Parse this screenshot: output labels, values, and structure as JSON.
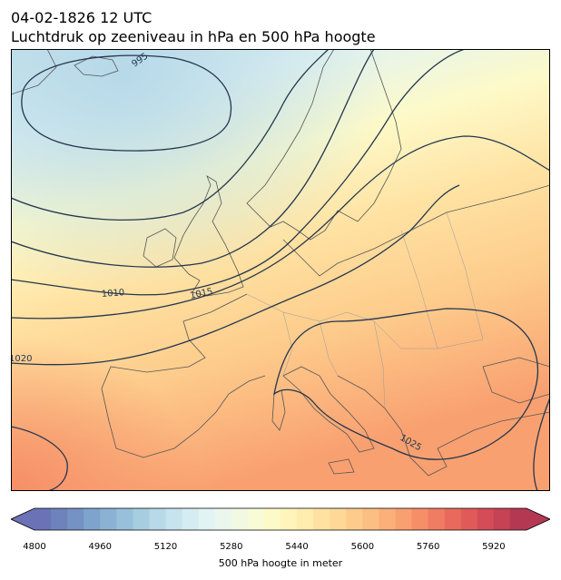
{
  "header": {
    "datetime": "04-02-1826 12 UTC",
    "title": "Luchtdruk op zeeniveau in hPa en 500 hPa hoogte"
  },
  "map": {
    "isobar_labels": [
      "995",
      "1010",
      "1015",
      "1020",
      "1025"
    ],
    "colors": {
      "coast": "#555555",
      "isobar": "#24364f",
      "border": "#9a9a9a"
    }
  },
  "colorbar": {
    "label": "500 hPa hoogte in meter",
    "ticks": [
      "4800",
      "4960",
      "5120",
      "5280",
      "5440",
      "5600",
      "5760",
      "5920"
    ],
    "min": 4800,
    "max": 6000,
    "step": 40,
    "colors": [
      "#6b72b6",
      "#6e83bc",
      "#7592c4",
      "#7ea3cc",
      "#8ab2d3",
      "#98c0da",
      "#a7cde1",
      "#b7d9e8",
      "#c6e3ee",
      "#d4ecf2",
      "#e1f3f3",
      "#ebf7ee",
      "#f2f9e3",
      "#f8fbd6",
      "#fdfac9",
      "#fff4bb",
      "#ffecae",
      "#ffe2a2",
      "#fed897",
      "#fdcc8c",
      "#fcbf82",
      "#fbb079",
      "#f9a070",
      "#f68e68",
      "#f07c61",
      "#e96a5c",
      "#e05a59",
      "#d44c57",
      "#c64255",
      "#b53853"
    ]
  }
}
